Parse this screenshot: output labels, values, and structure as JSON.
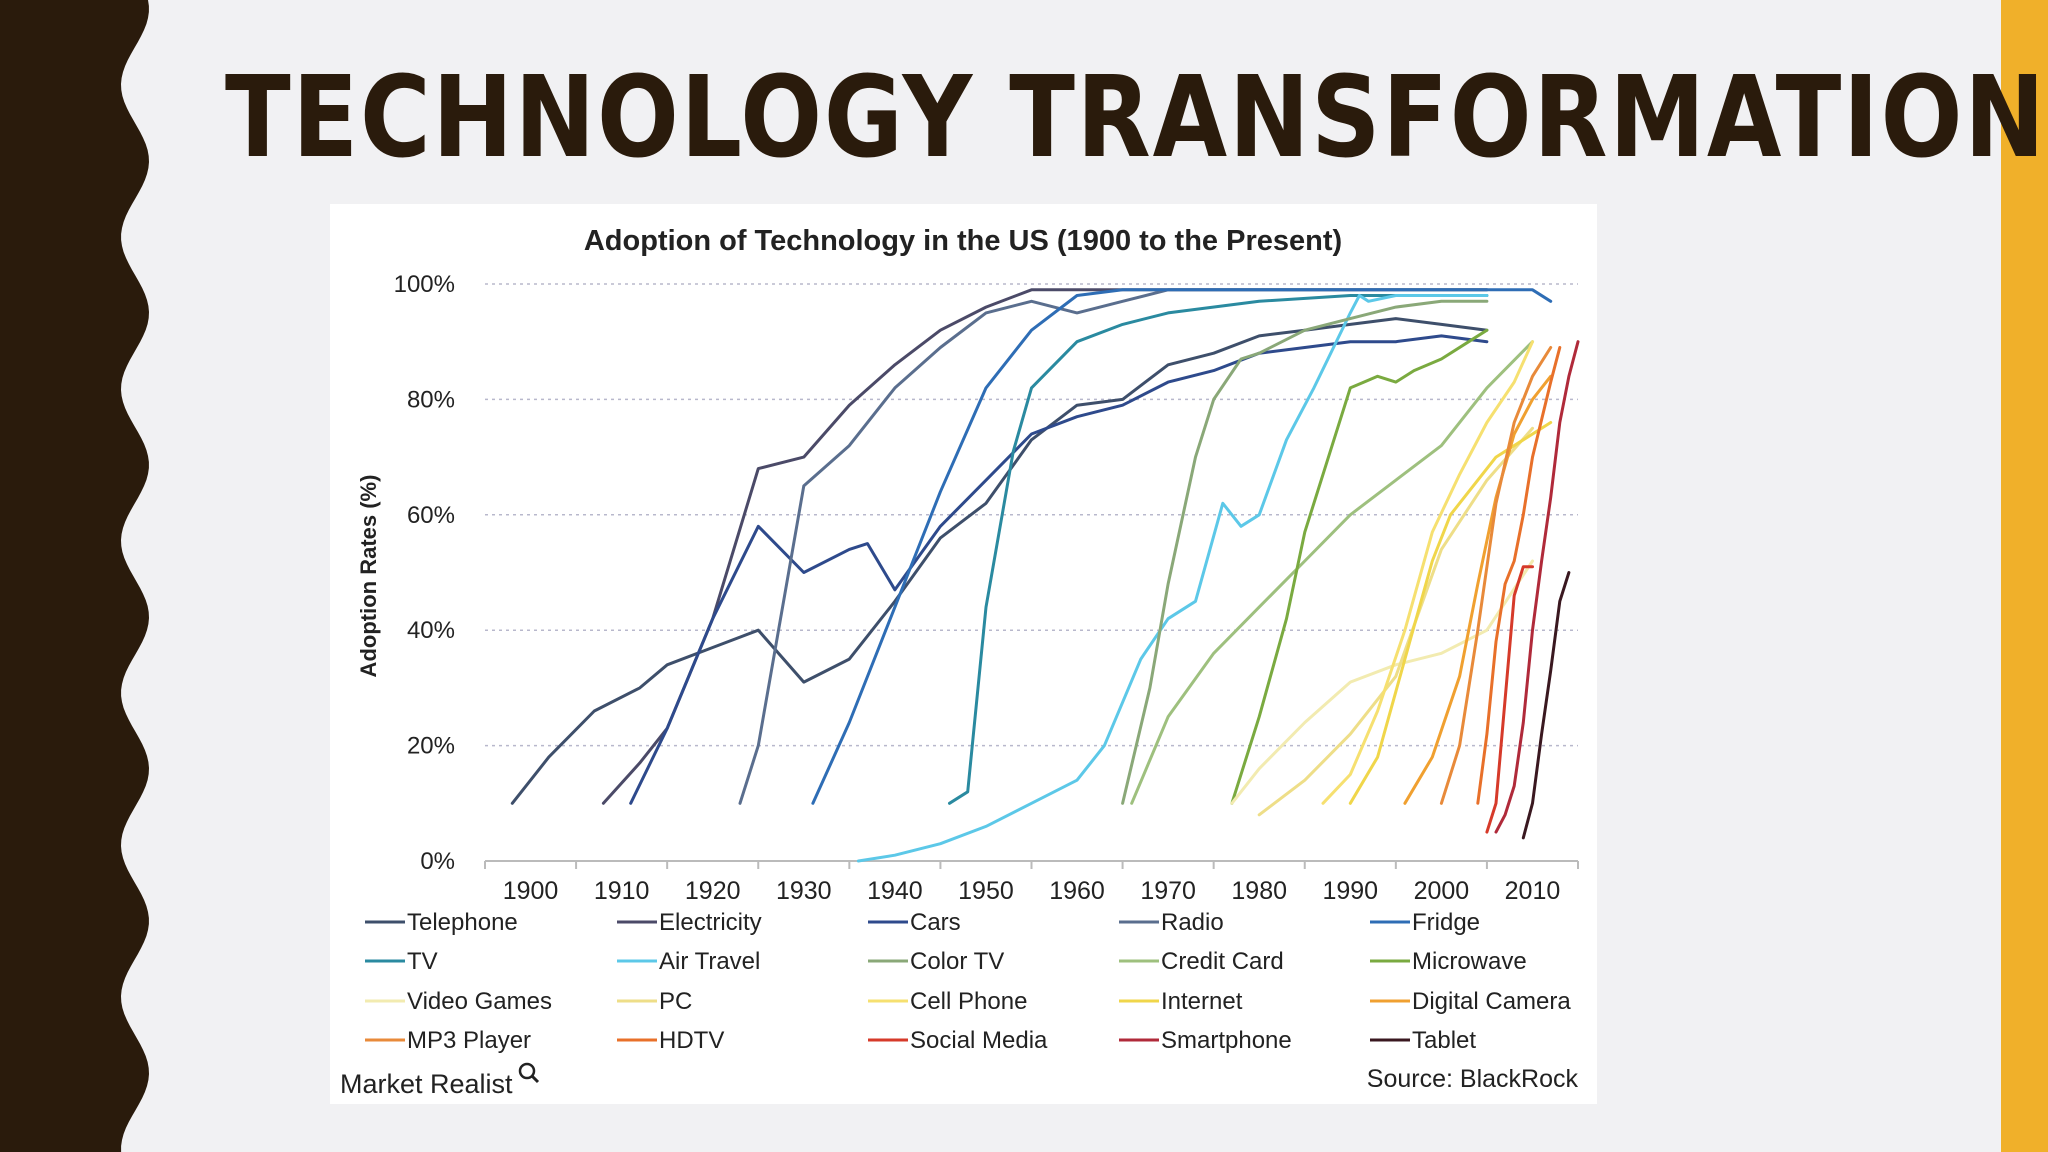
{
  "slide": {
    "title": "TECHNOLOGY TRANSFORMATION",
    "colors": {
      "left_band": "#2a1b0c",
      "right_band": "#f0b02a",
      "background": "#f1f1f3",
      "title": "#2a1b0c"
    }
  },
  "chart_data": {
    "type": "line",
    "title": "Adoption of Technology in the US (1900 to the Present)",
    "xlabel": "",
    "ylabel": "Adoption Rates (%)",
    "xlim": [
      1895,
      2015
    ],
    "ylim": [
      0,
      100
    ],
    "x_ticks": [
      1900,
      1910,
      1920,
      1930,
      1940,
      1950,
      1960,
      1970,
      1980,
      1990,
      2000,
      2010
    ],
    "y_ticks": [
      "0%",
      "20%",
      "40%",
      "60%",
      "80%",
      "100%"
    ],
    "y_tick_values": [
      0,
      20,
      40,
      60,
      80,
      100
    ],
    "grid": "horizontal dashed",
    "legend_position": "bottom",
    "source": "Source: BlackRock",
    "brand": "Market Realist",
    "series": [
      {
        "name": "Telephone",
        "color": "#3e4f6b",
        "points": [
          [
            1898,
            10
          ],
          [
            1902,
            18
          ],
          [
            1907,
            26
          ],
          [
            1912,
            30
          ],
          [
            1915,
            34
          ],
          [
            1920,
            37
          ],
          [
            1925,
            40
          ],
          [
            1930,
            31
          ],
          [
            1935,
            35
          ],
          [
            1940,
            45
          ],
          [
            1945,
            56
          ],
          [
            1950,
            62
          ],
          [
            1955,
            73
          ],
          [
            1960,
            79
          ],
          [
            1965,
            80
          ],
          [
            1970,
            86
          ],
          [
            1975,
            88
          ],
          [
            1980,
            91
          ],
          [
            1985,
            92
          ],
          [
            1990,
            93
          ],
          [
            1995,
            94
          ],
          [
            2000,
            93
          ],
          [
            2005,
            92
          ]
        ]
      },
      {
        "name": "Electricity",
        "color": "#4b4a68",
        "points": [
          [
            1908,
            10
          ],
          [
            1912,
            17
          ],
          [
            1915,
            23
          ],
          [
            1920,
            42
          ],
          [
            1925,
            68
          ],
          [
            1930,
            70
          ],
          [
            1935,
            79
          ],
          [
            1940,
            86
          ],
          [
            1945,
            92
          ],
          [
            1950,
            96
          ],
          [
            1955,
            99
          ],
          [
            1960,
            99
          ],
          [
            1970,
            99
          ],
          [
            1980,
            99
          ],
          [
            1990,
            99
          ],
          [
            2000,
            99
          ],
          [
            2005,
            99
          ]
        ]
      },
      {
        "name": "Cars",
        "color": "#2e4a8c",
        "points": [
          [
            1911,
            10
          ],
          [
            1915,
            23
          ],
          [
            1920,
            42
          ],
          [
            1925,
            58
          ],
          [
            1930,
            50
          ],
          [
            1935,
            54
          ],
          [
            1937,
            55
          ],
          [
            1940,
            47
          ],
          [
            1945,
            58
          ],
          [
            1950,
            66
          ],
          [
            1955,
            74
          ],
          [
            1960,
            77
          ],
          [
            1965,
            79
          ],
          [
            1970,
            83
          ],
          [
            1975,
            85
          ],
          [
            1980,
            88
          ],
          [
            1985,
            89
          ],
          [
            1990,
            90
          ],
          [
            1995,
            90
          ],
          [
            2000,
            91
          ],
          [
            2005,
            90
          ]
        ]
      },
      {
        "name": "Radio",
        "color": "#5a6e8e",
        "points": [
          [
            1923,
            10
          ],
          [
            1925,
            20
          ],
          [
            1930,
            65
          ],
          [
            1935,
            72
          ],
          [
            1940,
            82
          ],
          [
            1945,
            89
          ],
          [
            1950,
            95
          ],
          [
            1955,
            97
          ],
          [
            1960,
            95
          ],
          [
            1965,
            97
          ],
          [
            1970,
            99
          ],
          [
            1980,
            99
          ],
          [
            1990,
            99
          ],
          [
            2000,
            99
          ],
          [
            2005,
            99
          ]
        ]
      },
      {
        "name": "Fridge",
        "color": "#2e6db5",
        "points": [
          [
            1931,
            10
          ],
          [
            1935,
            24
          ],
          [
            1940,
            44
          ],
          [
            1945,
            64
          ],
          [
            1950,
            82
          ],
          [
            1955,
            92
          ],
          [
            1960,
            98
          ],
          [
            1965,
            99
          ],
          [
            1970,
            99
          ],
          [
            1980,
            99
          ],
          [
            1990,
            99
          ],
          [
            2000,
            99
          ],
          [
            2010,
            99
          ],
          [
            2012,
            97
          ]
        ]
      },
      {
        "name": "TV",
        "color": "#2a8aa0",
        "points": [
          [
            1946,
            10
          ],
          [
            1948,
            12
          ],
          [
            1950,
            44
          ],
          [
            1953,
            71
          ],
          [
            1955,
            82
          ],
          [
            1960,
            90
          ],
          [
            1965,
            93
          ],
          [
            1970,
            95
          ],
          [
            1980,
            97
          ],
          [
            1990,
            98
          ],
          [
            2000,
            98
          ],
          [
            2005,
            98
          ]
        ]
      },
      {
        "name": "Air Travel",
        "color": "#5cc8e8",
        "points": [
          [
            1936,
            0
          ],
          [
            1940,
            1
          ],
          [
            1945,
            3
          ],
          [
            1950,
            6
          ],
          [
            1955,
            10
          ],
          [
            1960,
            14
          ],
          [
            1963,
            20
          ],
          [
            1967,
            35
          ],
          [
            1970,
            42
          ],
          [
            1973,
            45
          ],
          [
            1976,
            62
          ],
          [
            1978,
            58
          ],
          [
            1980,
            60
          ],
          [
            1983,
            73
          ],
          [
            1986,
            82
          ],
          [
            1990,
            95
          ],
          [
            1991,
            98
          ],
          [
            1992,
            97
          ],
          [
            1995,
            98
          ],
          [
            2000,
            98
          ],
          [
            2005,
            98
          ]
        ]
      },
      {
        "name": "Color TV",
        "color": "#8aa878",
        "points": [
          [
            1965,
            10
          ],
          [
            1968,
            30
          ],
          [
            1970,
            48
          ],
          [
            1973,
            70
          ],
          [
            1975,
            80
          ],
          [
            1978,
            87
          ],
          [
            1980,
            88
          ],
          [
            1985,
            92
          ],
          [
            1990,
            94
          ],
          [
            1995,
            96
          ],
          [
            2000,
            97
          ],
          [
            2005,
            97
          ]
        ]
      },
      {
        "name": "Credit Card",
        "color": "#9ec07e",
        "points": [
          [
            1966,
            10
          ],
          [
            1970,
            25
          ],
          [
            1975,
            36
          ],
          [
            1980,
            44
          ],
          [
            1985,
            52
          ],
          [
            1990,
            60
          ],
          [
            1995,
            66
          ],
          [
            2000,
            72
          ],
          [
            2005,
            82
          ],
          [
            2010,
            90
          ]
        ]
      },
      {
        "name": "Microwave",
        "color": "#7aaa40",
        "points": [
          [
            1977,
            10
          ],
          [
            1980,
            25
          ],
          [
            1983,
            42
          ],
          [
            1985,
            57
          ],
          [
            1988,
            72
          ],
          [
            1990,
            82
          ],
          [
            1993,
            84
          ],
          [
            1995,
            83
          ],
          [
            1997,
            85
          ],
          [
            2000,
            87
          ],
          [
            2003,
            90
          ],
          [
            2005,
            92
          ]
        ]
      },
      {
        "name": "Video Games",
        "color": "#f2ebb0",
        "points": [
          [
            1977,
            10
          ],
          [
            1980,
            16
          ],
          [
            1985,
            24
          ],
          [
            1990,
            31
          ],
          [
            1995,
            34
          ],
          [
            2000,
            36
          ],
          [
            2005,
            40
          ],
          [
            2010,
            52
          ]
        ]
      },
      {
        "name": "PC",
        "color": "#eede88",
        "points": [
          [
            1980,
            8
          ],
          [
            1985,
            14
          ],
          [
            1990,
            22
          ],
          [
            1995,
            32
          ],
          [
            2000,
            54
          ],
          [
            2005,
            66
          ],
          [
            2010,
            75
          ]
        ]
      },
      {
        "name": "Cell Phone",
        "color": "#f6e070",
        "points": [
          [
            1987,
            10
          ],
          [
            1990,
            15
          ],
          [
            1993,
            26
          ],
          [
            1996,
            40
          ],
          [
            1999,
            57
          ],
          [
            2002,
            67
          ],
          [
            2005,
            76
          ],
          [
            2008,
            83
          ],
          [
            2010,
            90
          ]
        ]
      },
      {
        "name": "Internet",
        "color": "#f0d64a",
        "points": [
          [
            1990,
            10
          ],
          [
            1993,
            18
          ],
          [
            1996,
            35
          ],
          [
            1999,
            52
          ],
          [
            2001,
            60
          ],
          [
            2003,
            64
          ],
          [
            2006,
            70
          ],
          [
            2009,
            73
          ],
          [
            2012,
            76
          ]
        ]
      },
      {
        "name": "Digital Camera",
        "color": "#f0a030",
        "points": [
          [
            1996,
            10
          ],
          [
            1999,
            18
          ],
          [
            2002,
            32
          ],
          [
            2004,
            48
          ],
          [
            2006,
            63
          ],
          [
            2008,
            74
          ],
          [
            2010,
            80
          ],
          [
            2012,
            84
          ]
        ]
      },
      {
        "name": "MP3 Player",
        "color": "#e88a3a",
        "points": [
          [
            2000,
            10
          ],
          [
            2002,
            20
          ],
          [
            2004,
            40
          ],
          [
            2006,
            62
          ],
          [
            2008,
            76
          ],
          [
            2010,
            84
          ],
          [
            2012,
            89
          ]
        ]
      },
      {
        "name": "HDTV",
        "color": "#e8702a",
        "points": [
          [
            2004,
            10
          ],
          [
            2005,
            22
          ],
          [
            2006,
            38
          ],
          [
            2007,
            48
          ],
          [
            2008,
            52
          ],
          [
            2009,
            60
          ],
          [
            2010,
            70
          ],
          [
            2012,
            83
          ],
          [
            2013,
            89
          ]
        ]
      },
      {
        "name": "Social Media",
        "color": "#d63a2a",
        "points": [
          [
            2005,
            5
          ],
          [
            2006,
            10
          ],
          [
            2007,
            28
          ],
          [
            2008,
            46
          ],
          [
            2009,
            51
          ],
          [
            2010,
            51
          ]
        ]
      },
      {
        "name": "Smartphone",
        "color": "#b02a3a",
        "points": [
          [
            2006,
            5
          ],
          [
            2007,
            8
          ],
          [
            2008,
            13
          ],
          [
            2009,
            24
          ],
          [
            2010,
            40
          ],
          [
            2011,
            52
          ],
          [
            2012,
            63
          ],
          [
            2013,
            76
          ],
          [
            2014,
            84
          ],
          [
            2015,
            90
          ]
        ]
      },
      {
        "name": "Tablet",
        "color": "#3a1820",
        "points": [
          [
            2009,
            4
          ],
          [
            2010,
            10
          ],
          [
            2011,
            22
          ],
          [
            2012,
            33
          ],
          [
            2013,
            45
          ],
          [
            2014,
            50
          ]
        ]
      }
    ]
  }
}
